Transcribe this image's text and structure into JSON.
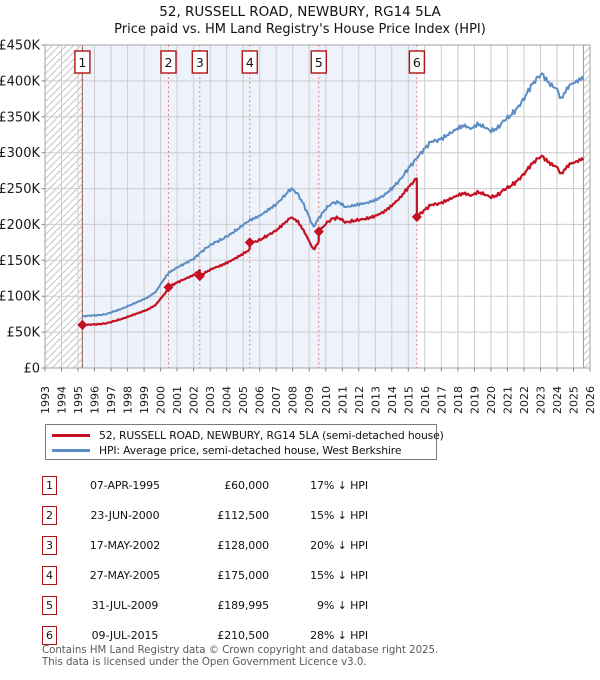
{
  "title": "52, RUSSELL ROAD, NEWBURY, RG14 5LA",
  "subtitle": "Price paid vs. HM Land Registry's House Price Index (HPI)",
  "chart_data": {
    "type": "line",
    "x_axis": {
      "tick_years": [
        1993,
        1994,
        1995,
        1996,
        1997,
        1998,
        1999,
        2000,
        2001,
        2002,
        2003,
        2004,
        2005,
        2006,
        2007,
        2008,
        2009,
        2010,
        2011,
        2012,
        2013,
        2014,
        2015,
        2016,
        2017,
        2018,
        2019,
        2020,
        2021,
        2022,
        2023,
        2024,
        2025,
        2026
      ],
      "min": 1993,
      "max": 2026
    },
    "y_axis": {
      "min": 0,
      "max": 450000,
      "tick_step": 50000,
      "tick_labels": [
        "£0",
        "£50K",
        "£100K",
        "£150K",
        "£200K",
        "£250K",
        "£300K",
        "£350K",
        "£400K",
        "£450K"
      ]
    },
    "grid": true,
    "legend_position": "below",
    "series": [
      {
        "name": "52, RUSSELL ROAD, NEWBURY, RG14 5LA (semi-detached house)",
        "color": "#c41020",
        "kind": "price-paid-scaled-by-hpi"
      },
      {
        "name": "HPI: Average price, semi-detached house, West Berkshire",
        "color": "#5b8dc4",
        "kind": "hpi-index"
      }
    ],
    "hpi_anchors_gbp_k": [
      [
        1995.263,
        72
      ],
      [
        1995.7,
        73
      ],
      [
        1996.2,
        73.5
      ],
      [
        1996.7,
        75
      ],
      [
        1997.2,
        79
      ],
      [
        1997.7,
        83
      ],
      [
        1998.2,
        88
      ],
      [
        1998.7,
        93
      ],
      [
        1999.2,
        98
      ],
      [
        1999.7,
        106
      ],
      [
        2000.1,
        120
      ],
      [
        2000.477,
        132.4
      ],
      [
        2001.0,
        140
      ],
      [
        2001.5,
        146
      ],
      [
        2002.0,
        152
      ],
      [
        2002.373,
        160
      ],
      [
        2002.8,
        168
      ],
      [
        2003.2,
        174
      ],
      [
        2003.7,
        179
      ],
      [
        2004.2,
        186
      ],
      [
        2004.7,
        194
      ],
      [
        2005.1,
        201
      ],
      [
        2005.4,
        205.9
      ],
      [
        2006.0,
        212
      ],
      [
        2006.5,
        220
      ],
      [
        2007.0,
        228
      ],
      [
        2007.5,
        240
      ],
      [
        2007.9,
        250
      ],
      [
        2008.3,
        243
      ],
      [
        2008.7,
        226
      ],
      [
        2009.0,
        210
      ],
      [
        2009.25,
        196
      ],
      [
        2009.578,
        208.8
      ],
      [
        2010.0,
        222
      ],
      [
        2010.4,
        230
      ],
      [
        2010.8,
        231
      ],
      [
        2011.2,
        224
      ],
      [
        2011.6,
        226
      ],
      [
        2012.0,
        228
      ],
      [
        2012.5,
        230
      ],
      [
        2013.0,
        234
      ],
      [
        2013.5,
        240
      ],
      [
        2014.0,
        250
      ],
      [
        2014.5,
        262
      ],
      [
        2015.0,
        278
      ],
      [
        2015.518,
        292.4
      ],
      [
        2016.0,
        306
      ],
      [
        2016.4,
        316
      ],
      [
        2016.8,
        317
      ],
      [
        2017.2,
        322
      ],
      [
        2017.6,
        328
      ],
      [
        2018.0,
        334
      ],
      [
        2018.4,
        338
      ],
      [
        2018.8,
        333
      ],
      [
        2019.2,
        340
      ],
      [
        2019.6,
        336
      ],
      [
        2020.0,
        330
      ],
      [
        2020.4,
        334
      ],
      [
        2020.8,
        345
      ],
      [
        2021.2,
        352
      ],
      [
        2021.6,
        362
      ],
      [
        2022.0,
        375
      ],
      [
        2022.4,
        392
      ],
      [
        2022.8,
        404
      ],
      [
        2023.1,
        410
      ],
      [
        2023.4,
        400
      ],
      [
        2023.7,
        393
      ],
      [
        2024.0,
        389
      ],
      [
        2024.25,
        374
      ],
      [
        2024.5,
        385
      ],
      [
        2024.8,
        395
      ],
      [
        2025.1,
        398
      ],
      [
        2025.6,
        405
      ]
    ],
    "transactions": [
      {
        "n": 1,
        "date": "07-APR-1995",
        "year": 1995.263,
        "price_gbp": 60000,
        "hpi_diff": "17% ↓ HPI"
      },
      {
        "n": 2,
        "date": "23-JUN-2000",
        "year": 2000.477,
        "price_gbp": 112500,
        "hpi_diff": "15% ↓ HPI"
      },
      {
        "n": 3,
        "date": "17-MAY-2002",
        "year": 2002.373,
        "price_gbp": 128000,
        "hpi_diff": "20% ↓ HPI"
      },
      {
        "n": 4,
        "date": "27-MAY-2005",
        "year": 2005.4,
        "price_gbp": 175000,
        "hpi_diff": "15% ↓ HPI"
      },
      {
        "n": 5,
        "date": "31-JUL-2009",
        "year": 2009.578,
        "price_gbp": 189995,
        "hpi_diff": "9% ↓ HPI"
      },
      {
        "n": 6,
        "date": "09-JUL-2015",
        "year": 2015.518,
        "price_gbp": 210500,
        "hpi_diff": "28% ↓ HPI"
      }
    ],
    "data_start_year": 1995.263,
    "data_end_year": 2025.6,
    "shaded_period": [
      1995.263,
      2015.518
    ]
  },
  "legend": {
    "entries": [
      {
        "label": "52, RUSSELL ROAD, NEWBURY, RG14 5LA (semi-detached house)",
        "color": "#c41020"
      },
      {
        "label": "HPI: Average price, semi-detached house, West Berkshire",
        "color": "#5b8dc4"
      }
    ]
  },
  "table": {
    "rows": [
      {
        "num": "1",
        "date": "07-APR-1995",
        "price": "£60,000",
        "hpi_diff": "17% ↓ HPI"
      },
      {
        "num": "2",
        "date": "23-JUN-2000",
        "price": "£112,500",
        "hpi_diff": "15% ↓ HPI"
      },
      {
        "num": "3",
        "date": "17-MAY-2002",
        "price": "£128,000",
        "hpi_diff": "20% ↓ HPI"
      },
      {
        "num": "4",
        "date": "27-MAY-2005",
        "price": "£175,000",
        "hpi_diff": "15% ↓ HPI"
      },
      {
        "num": "5",
        "date": "31-JUL-2009",
        "price": "£189,995",
        "hpi_diff": "9% ↓ HPI"
      },
      {
        "num": "6",
        "date": "09-JUL-2015",
        "price": "£210,500",
        "hpi_diff": "28% ↓ HPI"
      }
    ]
  },
  "footer": {
    "line1": "Contains HM Land Registry data © Crown copyright and database right 2025.",
    "line2": "This data is licensed under the Open Government Licence v3.0."
  },
  "colors": {
    "accent_red": "#b11212",
    "dashed_red": "#f07070",
    "price_line": "#c41020",
    "hpi_line": "#5b8dc4",
    "shade": "#edf2fb",
    "grid": "#cccccc",
    "plot_border": "#b0b0b0",
    "hatch": "#c4c4c4",
    "text": "#1a1a1a",
    "footer_text": "#595959"
  }
}
